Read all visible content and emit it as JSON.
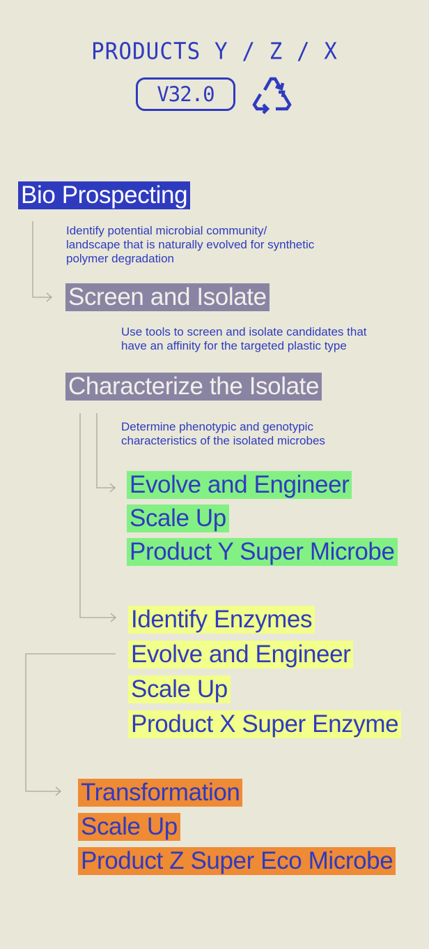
{
  "header": {
    "title": "PRODUCTS Y / Z / X",
    "version": "V32.0",
    "icon": "recycle-icon"
  },
  "steps": {
    "bio_prospecting": {
      "label": "Bio Prospecting",
      "description": [
        "Identify potential microbial community/",
        "landscape that is naturally evolved for synthetic",
        "polymer degradation"
      ]
    },
    "screen_isolate": {
      "label": "Screen and Isolate",
      "description": [
        "Use tools to screen and isolate candidates that",
        "have an affinity for the targeted plastic type"
      ]
    },
    "characterize": {
      "label": "Characterize the Isolate",
      "description": [
        "Determine phenotypic and genotypic",
        "characteristics of the isolated microbes"
      ]
    }
  },
  "branch_y": [
    "Evolve and Engineer",
    "Scale Up",
    "Product Y Super Microbe"
  ],
  "branch_x": [
    "Identify Enzymes",
    "Evolve and Engineer",
    "Scale Up",
    "Product X Super Enzyme"
  ],
  "branch_z": [
    "Transformation",
    "Scale Up",
    "Product Z Super Eco Microbe"
  ],
  "colors": {
    "background": "#e9e7d8",
    "ink": "#2f3bbf",
    "blue_highlight": "#2f3bbf",
    "gray_highlight": "#8a84a3",
    "green_highlight": "#83f084",
    "yellow_highlight": "#f2ff8a",
    "orange_highlight": "#ef8a35",
    "connector": "#a9a898"
  }
}
